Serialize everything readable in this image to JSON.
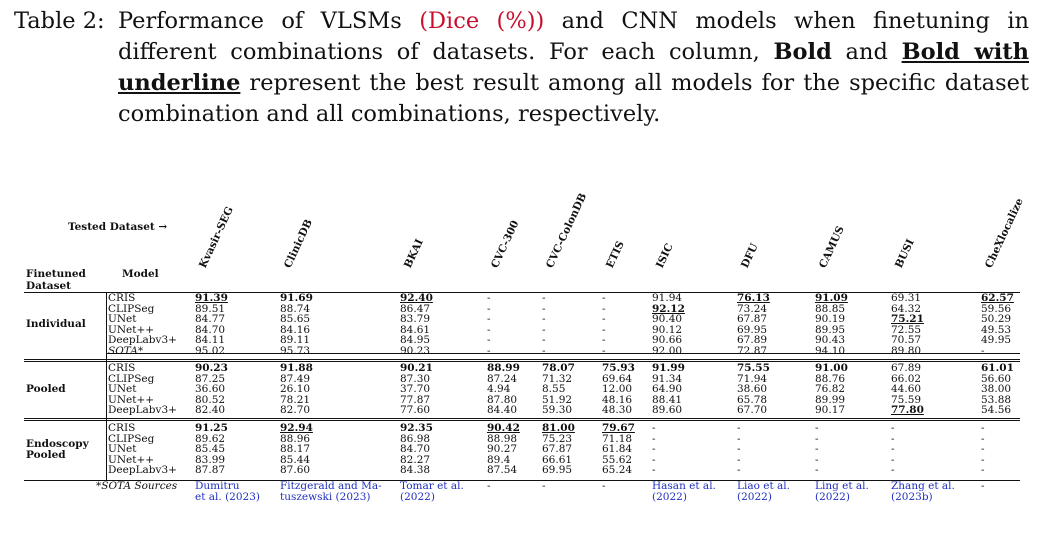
{
  "caption": {
    "label": "Table 2:",
    "parts": [
      {
        "text": "Performance of VLSMs ",
        "style": "normal"
      },
      {
        "text": "(Dice (%))",
        "style": "red"
      },
      {
        "text": " and CNN models when finetuning in different combinations of datasets.  For each column, ",
        "style": "normal"
      },
      {
        "text": "Bold",
        "style": "bold"
      },
      {
        "text": " and ",
        "style": "normal"
      },
      {
        "text": "Bold with underline",
        "style": "boldunder"
      },
      {
        "text": " represent the best result among all models for the specific dataset combination and all combinations, respectively.",
        "style": "normal"
      }
    ]
  },
  "table": {
    "tested_label": "Tested Dataset →",
    "head_finetuned": "Finetuned",
    "head_dataset": "Dataset",
    "head_model": "Model",
    "columns": [
      "Kvasir-SEG",
      "ClinicDB",
      "BKAI",
      "CVC-300",
      "CVC-ColonDB",
      "ETIS",
      "ISIC",
      "DFU",
      "CAMUS",
      "BUSI",
      "CheXlocalize"
    ],
    "groups": [
      {
        "name": [
          "Individual"
        ],
        "rows": [
          {
            "model": "CRIS",
            "cells": [
              [
                "91.39",
                "bu"
              ],
              [
                "91.69",
                "b"
              ],
              [
                "92.40",
                "bu"
              ],
              [
                "-",
                ""
              ],
              [
                "-",
                ""
              ],
              [
                "-",
                ""
              ],
              [
                "91.94",
                ""
              ],
              [
                "76.13",
                "bu"
              ],
              [
                "91.09",
                "bu"
              ],
              [
                "69.31",
                ""
              ],
              [
                "62.57",
                "bu"
              ]
            ]
          },
          {
            "model": "CLIPSeg",
            "cells": [
              [
                "89.51",
                ""
              ],
              [
                "88.74",
                ""
              ],
              [
                "86.47",
                ""
              ],
              [
                "-",
                ""
              ],
              [
                "-",
                ""
              ],
              [
                "-",
                ""
              ],
              [
                "92.12",
                "bu"
              ],
              [
                "73.24",
                ""
              ],
              [
                "88.85",
                ""
              ],
              [
                "64.32",
                ""
              ],
              [
                "59.56",
                ""
              ]
            ]
          },
          {
            "model": "UNet",
            "cells": [
              [
                "84.77",
                ""
              ],
              [
                "85.65",
                ""
              ],
              [
                "83.79",
                ""
              ],
              [
                "-",
                ""
              ],
              [
                "-",
                ""
              ],
              [
                "-",
                ""
              ],
              [
                "90.40",
                ""
              ],
              [
                "67.87",
                ""
              ],
              [
                "90.19",
                ""
              ],
              [
                "75.21",
                "bu"
              ],
              [
                "50.29",
                ""
              ]
            ]
          },
          {
            "model": "UNet++",
            "cells": [
              [
                "84.70",
                ""
              ],
              [
                "84.16",
                ""
              ],
              [
                "84.61",
                ""
              ],
              [
                "-",
                ""
              ],
              [
                "-",
                ""
              ],
              [
                "-",
                ""
              ],
              [
                "90.12",
                ""
              ],
              [
                "69.95",
                ""
              ],
              [
                "89.95",
                ""
              ],
              [
                "72.55",
                ""
              ],
              [
                "49.53",
                ""
              ]
            ]
          },
          {
            "model": "DeepLabv3+",
            "cells": [
              [
                "84.11",
                ""
              ],
              [
                "89.11",
                ""
              ],
              [
                "84.95",
                ""
              ],
              [
                "-",
                ""
              ],
              [
                "-",
                ""
              ],
              [
                "-",
                ""
              ],
              [
                "90.66",
                ""
              ],
              [
                "67.89",
                ""
              ],
              [
                "90.43",
                ""
              ],
              [
                "70.57",
                ""
              ],
              [
                "49.95",
                ""
              ]
            ]
          },
          {
            "model": "SOTA*",
            "model_style": "it",
            "cells": [
              [
                "95.02",
                ""
              ],
              [
                "95.73",
                ""
              ],
              [
                "90.23",
                ""
              ],
              [
                "-",
                ""
              ],
              [
                "-",
                ""
              ],
              [
                "-",
                ""
              ],
              [
                "92.00",
                ""
              ],
              [
                "72.87",
                ""
              ],
              [
                "94.10",
                ""
              ],
              [
                "89.80",
                ""
              ],
              [
                "-",
                ""
              ]
            ]
          }
        ]
      },
      {
        "name": [
          "Pooled"
        ],
        "rows": [
          {
            "model": "CRIS",
            "cells": [
              [
                "90.23",
                "b"
              ],
              [
                "91.88",
                "b"
              ],
              [
                "90.21",
                "b"
              ],
              [
                "88.99",
                "b"
              ],
              [
                "78.07",
                "b"
              ],
              [
                "75.93",
                "b"
              ],
              [
                "91.99",
                "b"
              ],
              [
                "75.55",
                "b"
              ],
              [
                "91.00",
                "b"
              ],
              [
                "67.89",
                ""
              ],
              [
                "61.01",
                "b"
              ]
            ]
          },
          {
            "model": "CLIPSeg",
            "cells": [
              [
                "87.25",
                ""
              ],
              [
                "87.49",
                ""
              ],
              [
                "87.30",
                ""
              ],
              [
                "87.24",
                ""
              ],
              [
                "71.32",
                ""
              ],
              [
                "69.64",
                ""
              ],
              [
                "91.34",
                ""
              ],
              [
                "71.94",
                ""
              ],
              [
                "88.76",
                ""
              ],
              [
                "66.02",
                ""
              ],
              [
                "56.60",
                ""
              ]
            ]
          },
          {
            "model": "UNet",
            "cells": [
              [
                "36.60",
                ""
              ],
              [
                "26.10",
                ""
              ],
              [
                "37.70",
                ""
              ],
              [
                "4.94",
                ""
              ],
              [
                "8.55",
                ""
              ],
              [
                "12.00",
                ""
              ],
              [
                "64.90",
                ""
              ],
              [
                "38.60",
                ""
              ],
              [
                "76.82",
                ""
              ],
              [
                "44.60",
                ""
              ],
              [
                "38.00",
                ""
              ]
            ]
          },
          {
            "model": "UNet++",
            "cells": [
              [
                "80.52",
                ""
              ],
              [
                "78.21",
                ""
              ],
              [
                "77.87",
                ""
              ],
              [
                "87.80",
                ""
              ],
              [
                "51.92",
                ""
              ],
              [
                "48.16",
                ""
              ],
              [
                "88.41",
                ""
              ],
              [
                "65.78",
                ""
              ],
              [
                "89.99",
                ""
              ],
              [
                "75.59",
                ""
              ],
              [
                "53.88",
                ""
              ]
            ]
          },
          {
            "model": "DeepLabv3+",
            "cells": [
              [
                "82.40",
                ""
              ],
              [
                "82.70",
                ""
              ],
              [
                "77.60",
                ""
              ],
              [
                "84.40",
                ""
              ],
              [
                "59.30",
                ""
              ],
              [
                "48.30",
                ""
              ],
              [
                "89.60",
                ""
              ],
              [
                "67.70",
                ""
              ],
              [
                "90.17",
                ""
              ],
              [
                "77.80",
                "bu"
              ],
              [
                "54.56",
                ""
              ]
            ]
          }
        ]
      },
      {
        "name": [
          "Endoscopy",
          "Pooled"
        ],
        "rows": [
          {
            "model": "CRIS",
            "cells": [
              [
                "91.25",
                "b"
              ],
              [
                "92.94",
                "bu"
              ],
              [
                "92.35",
                "b"
              ],
              [
                "90.42",
                "bu"
              ],
              [
                "81.00",
                "bu"
              ],
              [
                "79.67",
                "bu"
              ],
              [
                "-",
                ""
              ],
              [
                "-",
                ""
              ],
              [
                "-",
                ""
              ],
              [
                "-",
                ""
              ],
              [
                "-",
                ""
              ]
            ]
          },
          {
            "model": "CLIPSeg",
            "cells": [
              [
                "89.62",
                ""
              ],
              [
                "88.96",
                ""
              ],
              [
                "86.98",
                ""
              ],
              [
                "88.98",
                ""
              ],
              [
                "75.23",
                ""
              ],
              [
                "71.18",
                ""
              ],
              [
                "-",
                ""
              ],
              [
                "-",
                ""
              ],
              [
                "-",
                ""
              ],
              [
                "-",
                ""
              ],
              [
                "-",
                ""
              ]
            ]
          },
          {
            "model": "UNet",
            "cells": [
              [
                "85.45",
                ""
              ],
              [
                "88.17",
                ""
              ],
              [
                "84.70",
                ""
              ],
              [
                "90.27",
                ""
              ],
              [
                "67.87",
                ""
              ],
              [
                "61.84",
                ""
              ],
              [
                "-",
                ""
              ],
              [
                "-",
                ""
              ],
              [
                "-",
                ""
              ],
              [
                "-",
                ""
              ],
              [
                "-",
                ""
              ]
            ]
          },
          {
            "model": "UNet++",
            "cells": [
              [
                "83.99",
                ""
              ],
              [
                "85.44",
                ""
              ],
              [
                "82.27",
                ""
              ],
              [
                "89.4",
                ""
              ],
              [
                "66.61",
                ""
              ],
              [
                "55.62",
                ""
              ],
              [
                "-",
                ""
              ],
              [
                "-",
                ""
              ],
              [
                "-",
                ""
              ],
              [
                "-",
                ""
              ],
              [
                "-",
                ""
              ]
            ]
          },
          {
            "model": "DeepLabv3+",
            "cells": [
              [
                "87.87",
                ""
              ],
              [
                "87.60",
                ""
              ],
              [
                "84.38",
                ""
              ],
              [
                "87.54",
                ""
              ],
              [
                "69.95",
                ""
              ],
              [
                "65.24",
                ""
              ],
              [
                "-",
                ""
              ],
              [
                "-",
                ""
              ],
              [
                "-",
                ""
              ],
              [
                "-",
                ""
              ],
              [
                "-",
                ""
              ]
            ]
          }
        ]
      }
    ],
    "sources_label": "*SOTA Sources",
    "sources": [
      [
        "Dumitru",
        "et al. (2023)"
      ],
      [
        "Fitzgerald and Ma-",
        "tuszewski (2023)"
      ],
      [
        "Tomar et al.",
        "(2022)"
      ],
      [
        "-"
      ],
      [
        "-"
      ],
      [
        "-"
      ],
      [
        "Hasan et al.",
        "(2022)"
      ],
      [
        "Liao et al.",
        "(2022)"
      ],
      [
        "Ling et al.",
        "(2022)"
      ],
      [
        "Zhang et al.",
        "(2023b)"
      ],
      [
        "-"
      ]
    ]
  }
}
